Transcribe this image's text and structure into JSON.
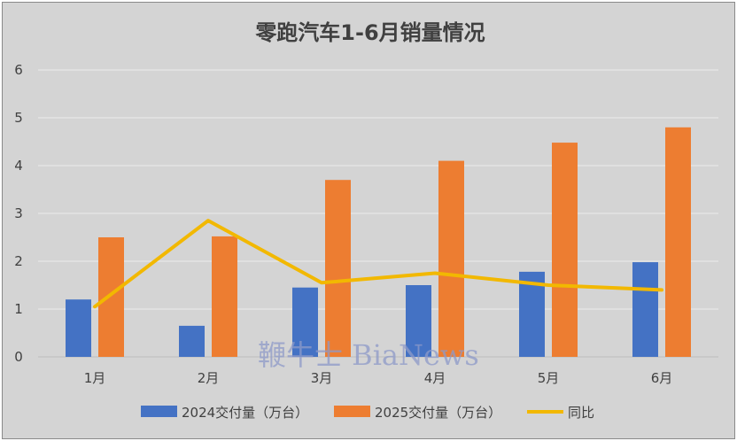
{
  "chart_data": {
    "type": "bar",
    "title": "零跑汽车1-6月销量情况",
    "categories": [
      "1月",
      "2月",
      "3月",
      "4月",
      "5月",
      "6月"
    ],
    "series": [
      {
        "name": "2024交付量（万台）",
        "type": "bar",
        "color": "#4472c4",
        "values": [
          1.2,
          0.65,
          1.45,
          1.5,
          1.78,
          1.98
        ]
      },
      {
        "name": "2025交付量（万台）",
        "type": "bar",
        "color": "#ed7d31",
        "values": [
          2.5,
          2.52,
          3.7,
          4.1,
          4.48,
          4.8
        ]
      },
      {
        "name": "同比",
        "type": "line",
        "color": "#f2b800",
        "values": [
          1.05,
          2.85,
          1.55,
          1.75,
          1.5,
          1.4
        ]
      }
    ],
    "ylim": [
      0,
      6
    ],
    "yticks": [
      "0",
      "1",
      "2",
      "3",
      "4",
      "5",
      "6"
    ],
    "grid": true,
    "legend": "bottom"
  },
  "watermark": "鞭牛士 BiaNews"
}
